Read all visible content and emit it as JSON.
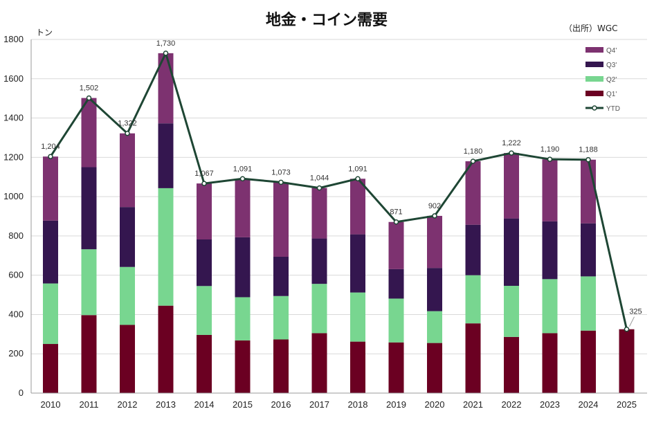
{
  "chart_data": {
    "type": "bar",
    "stacked": true,
    "title": "地金・コイン需要",
    "source": "（出所）WGC",
    "ylabel": "トン",
    "ylim": [
      0,
      1800
    ],
    "yticks": [
      0,
      200,
      400,
      600,
      800,
      1000,
      1200,
      1400,
      1600,
      1800
    ],
    "grid": true,
    "legend_position": "top-right",
    "categories": [
      "2010",
      "2011",
      "2012",
      "2013",
      "2014",
      "2015",
      "2016",
      "2017",
      "2018",
      "2019",
      "2020",
      "2021",
      "2022",
      "2023",
      "2024",
      "2025"
    ],
    "series": [
      {
        "name": "Q1'",
        "color": "#6b0022",
        "values": [
          250,
          397,
          347,
          445,
          296,
          268,
          273,
          305,
          262,
          258,
          255,
          355,
          286,
          305,
          318,
          325
        ]
      },
      {
        "name": "Q2'",
        "color": "#78d690",
        "values": [
          308,
          335,
          295,
          598,
          249,
          220,
          221,
          251,
          250,
          223,
          162,
          245,
          260,
          275,
          276,
          0
        ]
      },
      {
        "name": "Q3'",
        "color": "#34164f",
        "values": [
          320,
          418,
          305,
          330,
          237,
          305,
          200,
          231,
          296,
          150,
          220,
          257,
          343,
          294,
          270,
          0
        ]
      },
      {
        "name": "Q4'",
        "color": "#7d3270",
        "values": [
          326,
          352,
          375,
          357,
          285,
          298,
          379,
          257,
          283,
          240,
          265,
          323,
          333,
          316,
          324,
          0
        ]
      }
    ],
    "line": {
      "name": "YTD",
      "color": "#1e4634",
      "values": [
        1204,
        1502,
        1322,
        1730,
        1067,
        1091,
        1073,
        1044,
        1091,
        871,
        902,
        1180,
        1222,
        1190,
        1188,
        325
      ]
    },
    "data_labels": [
      "1,204",
      "1,502",
      "1,322",
      "1,730",
      "1,067",
      "1,091",
      "1,073",
      "1,044",
      "1,091",
      "871",
      "902",
      "1,180",
      "1,222",
      "1,190",
      "1,188",
      "325"
    ],
    "legend": [
      "Q4'",
      "Q3'",
      "Q2'",
      "Q1'",
      "YTD"
    ]
  }
}
